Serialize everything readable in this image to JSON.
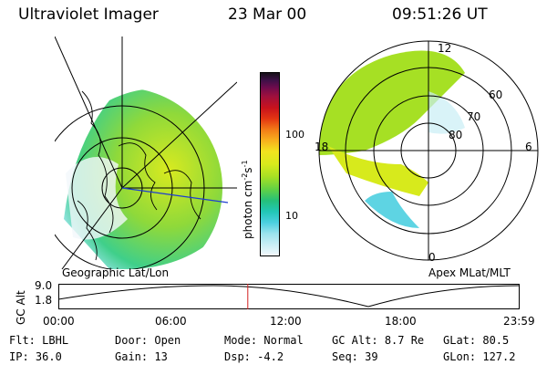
{
  "header": {
    "instrument": "Ultraviolet Imager",
    "date": "23 Mar 00",
    "time": "09:51:26 UT"
  },
  "left_panel": {
    "caption": "Geographic Lat/Lon"
  },
  "right_panel": {
    "caption": "Apex MLat/MLT",
    "mlt_labels": {
      "top": "12",
      "left": "18",
      "right": "6",
      "bottom": "0"
    },
    "lat_labels": [
      "60",
      "70",
      "80"
    ]
  },
  "colorbar": {
    "unit_label": "photon cm",
    "unit_exp1": "-2",
    "unit_s": "s",
    "unit_exp2": "-1",
    "tick_labels": [
      "100",
      "10"
    ],
    "colors": [
      "#f2f8fb",
      "#c9eef5",
      "#9be3ee",
      "#4ccfe0",
      "#22c7b7",
      "#25c07a",
      "#5fd146",
      "#a6e024",
      "#d7ea1c",
      "#f2e31f",
      "#f8b01d",
      "#f27b17",
      "#e33512",
      "#c8121d",
      "#a0103c",
      "#6e0b4d",
      "#3d1047",
      "#151018"
    ]
  },
  "timeline": {
    "axis_label": "GC Alt",
    "y_ticks": [
      "9.0",
      "1.8"
    ],
    "x_ticks": [
      "00:00",
      "06:00",
      "12:00",
      "18:00",
      "23:59"
    ],
    "current_time_hours": 9.857,
    "marker_color": "#d22020"
  },
  "info": {
    "row1": [
      {
        "key": "Flt:",
        "value": "LBHL"
      },
      {
        "key": "Door:",
        "value": "Open"
      },
      {
        "key": "Mode:",
        "value": "Normal"
      },
      {
        "key": "GC Alt:",
        "value": "8.7 Re"
      },
      {
        "key": "GLat:",
        "value": "80.5"
      }
    ],
    "row2": [
      {
        "key": "IP:",
        "value": "36.0"
      },
      {
        "key": "Gain:",
        "value": "13"
      },
      {
        "key": "Dsp:",
        "value": "-4.2"
      },
      {
        "key": "Seq:",
        "value": "39"
      },
      {
        "key": "GLon:",
        "value": "127.2"
      }
    ]
  }
}
